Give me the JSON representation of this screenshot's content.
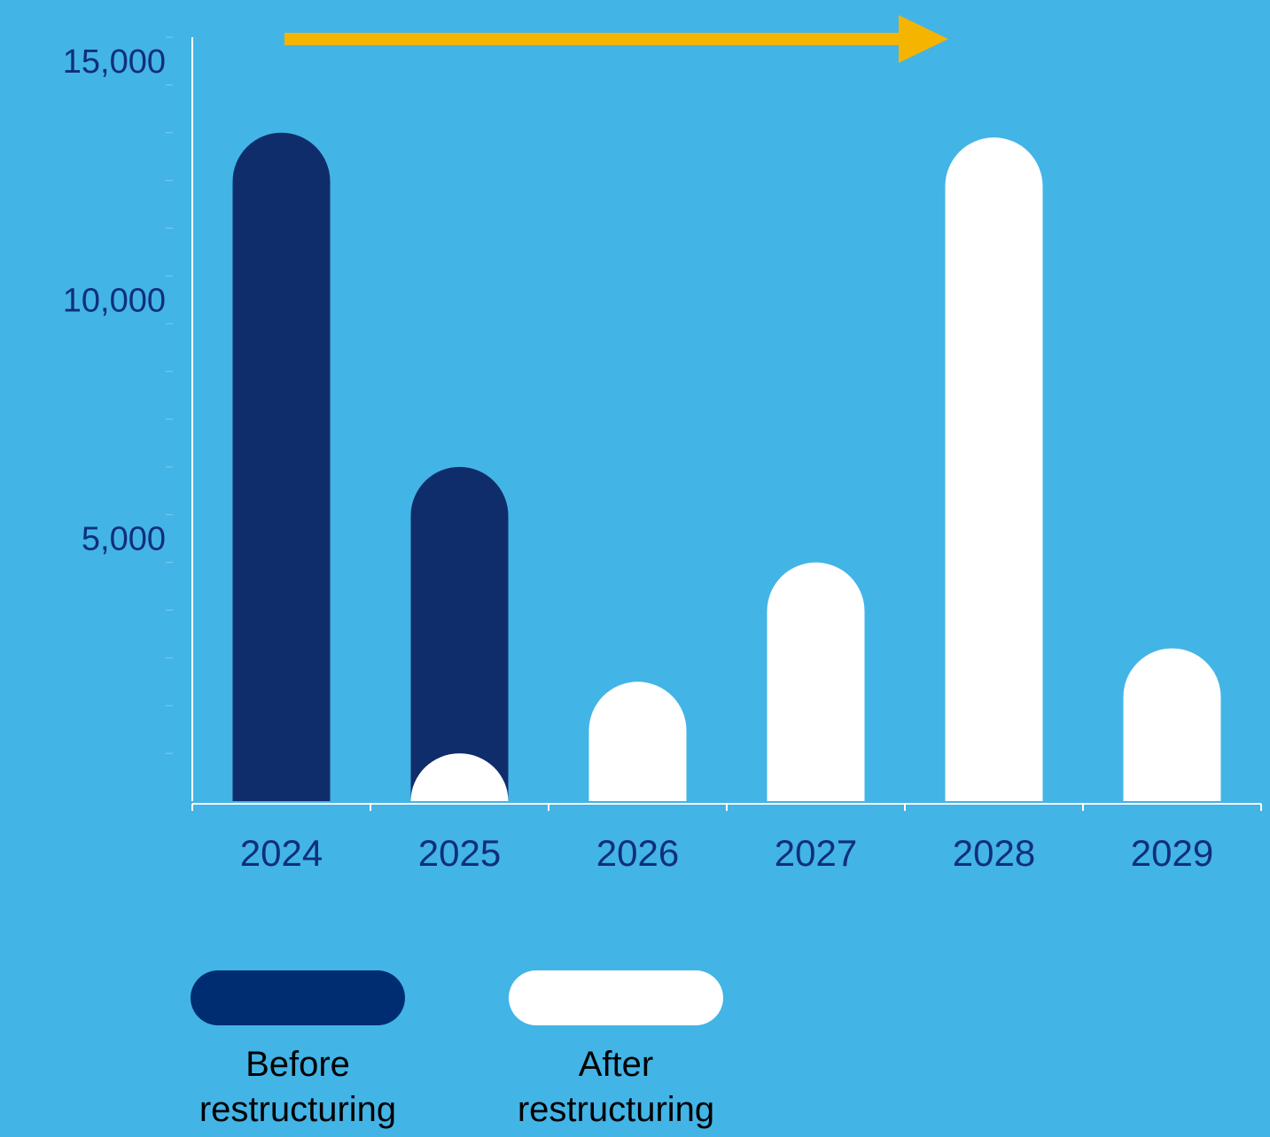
{
  "colors": {
    "background": "#43b4e6",
    "before": "#102d6b",
    "before_legend": "#002d72",
    "after": "#ffffff",
    "axis": "#ffffff",
    "tick_text": "#0f2f7a",
    "arrow": "#f5b400",
    "legend_text": "#000000"
  },
  "chart_data": {
    "type": "bar",
    "title": "",
    "xlabel": "",
    "ylabel": "",
    "categories": [
      "2024",
      "2025",
      "2026",
      "2027",
      "2028",
      "2029"
    ],
    "ylim": [
      0,
      15000
    ],
    "yticks": [
      {
        "value": 5000,
        "label": "5,000"
      },
      {
        "value": 10000,
        "label": "10,000"
      },
      {
        "value": 15000,
        "label": "15,000"
      }
    ],
    "minor_tick_step": 1000,
    "series": [
      {
        "name": "Before restructuring",
        "color": "#102d6b",
        "values": [
          14000,
          7000,
          null,
          null,
          null,
          null
        ]
      },
      {
        "name": "After restructuring",
        "color": "#ffffff",
        "values": [
          null,
          1000,
          2500,
          5000,
          13900,
          3200
        ]
      }
    ],
    "annotation": "arrow pointing right across top of chart",
    "legend": {
      "placement": "bottom-left",
      "items": [
        {
          "label_line1": "Before",
          "label_line2": "restructuring",
          "color": "#002d72"
        },
        {
          "label_line1": "After",
          "label_line2": "restructuring",
          "color": "#ffffff"
        }
      ]
    },
    "grid": false
  }
}
